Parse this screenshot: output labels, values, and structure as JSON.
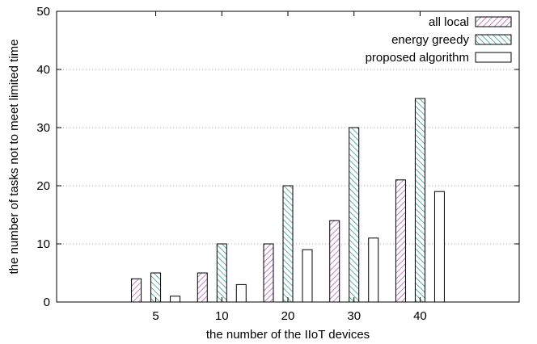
{
  "chart_data": {
    "type": "bar",
    "title": "",
    "xlabel": "the number of the IIoT devices",
    "ylabel": "the number of tasks not to meet limited time",
    "categories": [
      "5",
      "10",
      "20",
      "30",
      "40"
    ],
    "ylim": [
      0,
      50
    ],
    "yticks": [
      "0",
      "10",
      "20",
      "30",
      "40",
      "50"
    ],
    "grid": "horizontal dotted",
    "legend_position": "top-right",
    "series": [
      {
        "name": "all local",
        "values": [
          4,
          5,
          10,
          14,
          21
        ],
        "color": "#b060b0",
        "pattern": "diagonal-hatch-right"
      },
      {
        "name": "energy greedy",
        "values": [
          5,
          10,
          20,
          30,
          35
        ],
        "color": "#3a9a8a",
        "pattern": "diagonal-hatch-left"
      },
      {
        "name": "proposed algorithm",
        "values": [
          1,
          3,
          9,
          11,
          19
        ],
        "color": "#000000",
        "pattern": "none"
      }
    ]
  }
}
